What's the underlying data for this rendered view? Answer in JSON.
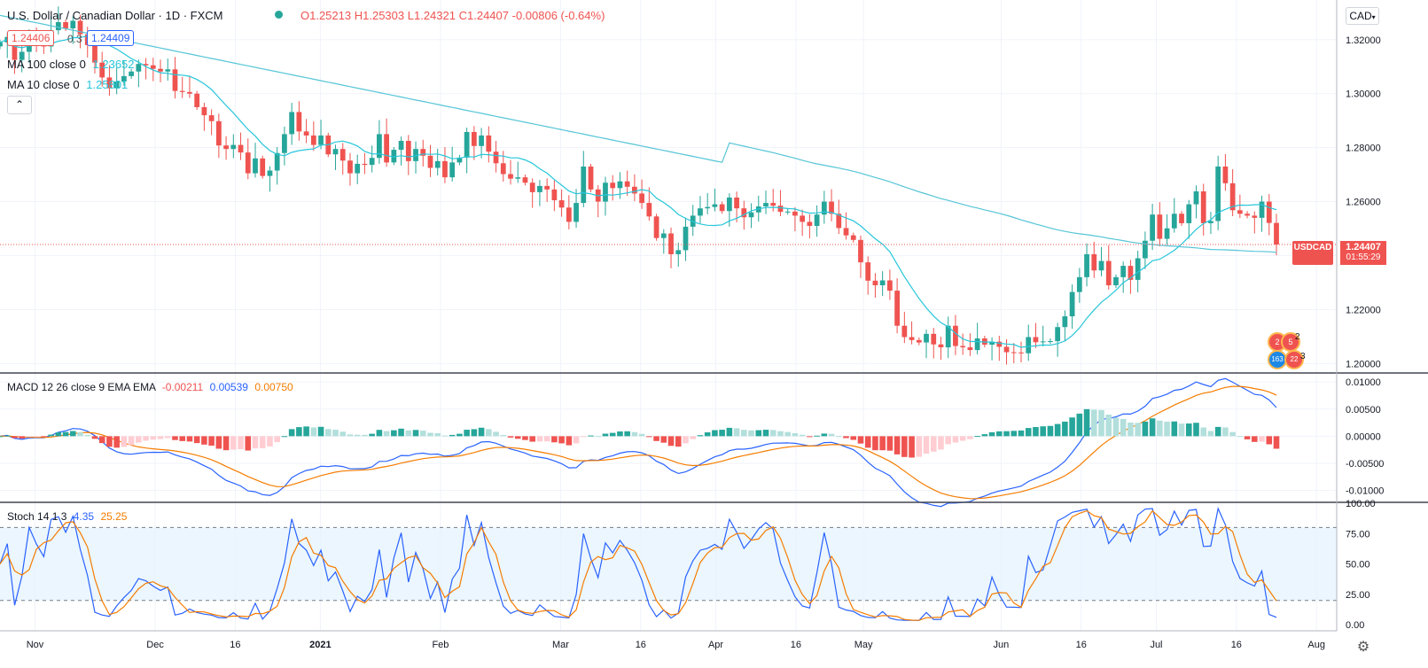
{
  "header": {
    "title": "U.S. Dollar / Canadian Dollar · 1D · FXCM",
    "ohlc": {
      "o": "O1.25213",
      "h": "H1.25303",
      "l": "L1.24321",
      "c": "C1.24407",
      "chg": "-0.00806 (-0.64%)"
    }
  },
  "quote": {
    "sell": "1.24406",
    "spread": "0.3",
    "buy": "1.24409"
  },
  "ma100": {
    "label": "MA 100 close 0",
    "value": "1.23652"
  },
  "ma10": {
    "label": "MA 10 close 0",
    "value": "1.25801"
  },
  "currency_button": "CAD",
  "price_badge": {
    "symbol": "USDCAD",
    "price": "1.24407",
    "countdown": "01:55:29"
  },
  "macd_legend": {
    "label": "MACD 12 26 close 9 EMA EMA",
    "hist": "-0.00211",
    "macd": "0.00539",
    "signal": "0.00750"
  },
  "stoch_legend": {
    "label": "Stoch 14 1 3",
    "k": "4.35",
    "d": "25.25"
  },
  "events": {
    "a": "2",
    "b": "5",
    "c": "2",
    "d": "163",
    "e": "22",
    "f": "3"
  },
  "colors": {
    "up": "#26a69a",
    "down": "#ef5350",
    "ma10": "#26c6da",
    "ma100": "#56c5d7",
    "macd": "#2962ff",
    "signal": "#f57c00",
    "band": "#e3f2fd",
    "k": "#2962ff",
    "d": "#f57c00"
  },
  "chart_data": {
    "type": "candlestick",
    "price_axis": {
      "ticks": [
        "1.32000",
        "1.30000",
        "1.28000",
        "1.26000",
        "1.24000",
        "1.22000",
        "1.20000"
      ],
      "range": [
        1.1965,
        1.3347
      ]
    },
    "macd_axis": {
      "ticks": [
        "0.01000",
        "0.00500",
        "0.00000",
        "-0.00500",
        "-0.01000"
      ],
      "range": [
        -0.0122,
        0.0115
      ]
    },
    "stoch_axis": {
      "ticks": [
        "100.00",
        "75.00",
        "50.00",
        "25.00",
        "0.00"
      ],
      "range": [
        -5,
        100
      ],
      "bands": [
        80,
        20
      ]
    },
    "x_labels": [
      "Nov",
      "Dec",
      "16",
      "2021",
      "Feb",
      "Mar",
      "16",
      "Apr",
      "16",
      "May",
      "Jun",
      "16",
      "Jul",
      "16",
      "Aug"
    ],
    "x_label_days": [
      14,
      62,
      94,
      128,
      176,
      224,
      256,
      286,
      318,
      345,
      400,
      432,
      462,
      494,
      526
    ],
    "first_day": 0,
    "last_day": 510,
    "close": [
      1.319,
      1.321,
      1.3125,
      1.3155,
      1.3205,
      1.3188,
      1.3175,
      1.3235,
      1.3265,
      1.3242,
      1.327,
      1.322,
      1.318,
      1.3115,
      1.306,
      1.302,
      1.3045,
      1.3065,
      1.3082,
      1.311,
      1.3105,
      1.3092,
      1.3082,
      1.309,
      1.301,
      1.3006,
      1.3,
      1.295,
      1.292,
      1.2898,
      1.2808,
      1.2795,
      1.281,
      1.2782,
      1.2705,
      1.276,
      1.2695,
      1.2715,
      1.278,
      1.285,
      1.2932,
      1.286,
      1.2845,
      1.281,
      1.2845,
      1.2775,
      1.2795,
      1.2752,
      1.2705,
      1.274,
      1.2736,
      1.2762,
      1.285,
      1.2745,
      1.2792,
      1.2825,
      1.275,
      1.2795,
      1.277,
      1.2725,
      1.275,
      1.269,
      1.2745,
      1.2763,
      1.2858,
      1.2806,
      1.2845,
      1.2785,
      1.2742,
      1.2702,
      1.2685,
      1.269,
      1.267,
      1.2635,
      1.2658,
      1.2645,
      1.2605,
      1.2578,
      1.2525,
      1.2595,
      1.273,
      1.2645,
      1.26,
      1.267,
      1.265,
      1.2675,
      1.2655,
      1.263,
      1.2595,
      1.2545,
      1.2465,
      1.2482,
      1.2405,
      1.242,
      1.2507,
      1.2548,
      1.2575,
      1.258,
      1.259,
      1.2565,
      1.2615,
      1.2575,
      1.2542,
      1.256,
      1.2582,
      1.2595,
      1.2585,
      1.2562,
      1.2563,
      1.2548,
      1.2525,
      1.251,
      1.2552,
      1.26,
      1.2555,
      1.2502,
      1.2475,
      1.2458,
      1.2375,
      1.2307,
      1.229,
      1.2308,
      1.227,
      1.214,
      1.2098,
      1.2087,
      1.2078,
      1.211,
      1.2071,
      1.206,
      1.214,
      1.2065,
      1.206,
      1.205,
      1.2093,
      1.207,
      1.2081,
      1.2062,
      1.2042,
      1.2041,
      1.2038,
      1.2098,
      1.2079,
      1.2082,
      1.2083,
      1.2135,
      1.2175,
      1.2265,
      1.232,
      1.2405,
      1.2345,
      1.238,
      1.229,
      1.232,
      1.2362,
      1.231,
      1.239,
      1.2455,
      1.2552,
      1.2462,
      1.2501,
      1.2555,
      1.252,
      1.259,
      1.2638,
      1.252,
      1.2528,
      1.273,
      1.2668,
      1.2568,
      1.2555,
      1.2548,
      1.254,
      1.26,
      1.2521,
      1.2441
    ]
  }
}
